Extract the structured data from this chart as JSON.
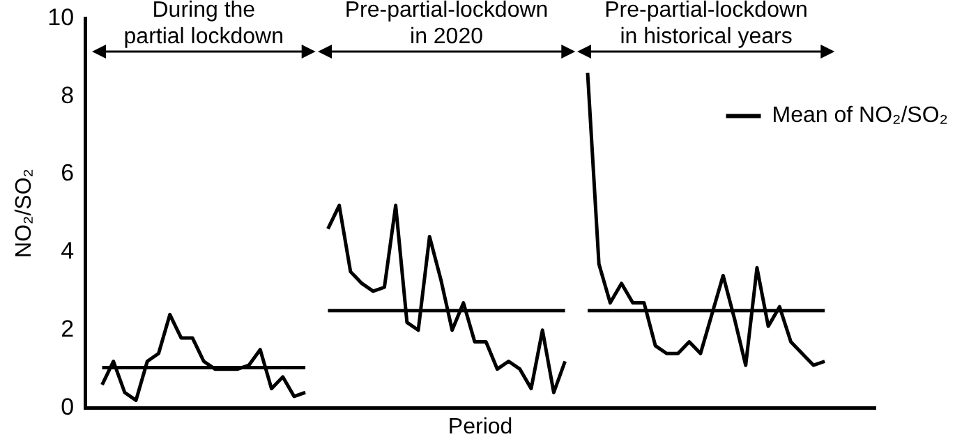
{
  "chart_data": {
    "type": "line",
    "xlabel": "Period",
    "ylabel": "NO₂/SO₂",
    "categories": [
      null,
      null,
      null,
      null,
      null,
      null,
      null,
      null,
      null,
      null,
      null,
      null,
      null,
      null,
      null,
      null,
      null,
      null,
      null,
      null,
      null,
      null,
      null,
      null,
      null,
      null,
      null,
      null,
      null,
      null,
      null,
      null,
      null,
      null,
      null,
      null,
      null,
      null,
      null,
      null,
      null,
      null,
      null,
      null,
      null,
      null,
      null,
      null,
      null,
      null,
      null,
      null,
      null,
      null,
      null,
      null,
      null,
      null,
      null,
      null,
      null,
      null,
      null,
      null,
      null,
      null,
      null,
      null,
      null,
      null
    ],
    "series": [
      {
        "color": "#000000",
        "values": [
          null,
          0.6,
          1.2,
          0.4,
          0.2,
          1.2,
          1.4,
          2.4,
          1.8,
          1.8,
          1.2,
          1.0,
          1.0,
          1.0,
          1.1,
          1.5,
          0.5,
          0.8,
          0.3,
          0.4,
          null,
          null,
          null,
          null,
          null,
          null,
          null,
          null,
          null,
          null,
          null,
          null,
          null,
          null,
          null,
          null,
          null,
          null,
          null,
          null,
          null,
          null,
          null,
          null,
          null,
          null,
          null,
          null,
          null,
          null,
          null,
          null,
          null,
          null,
          null,
          null,
          null,
          null,
          null,
          null,
          null,
          null,
          null,
          null,
          null,
          null,
          null,
          null,
          null,
          null
        ]
      },
      {
        "color": "#000000",
        "values": [
          null,
          null,
          null,
          null,
          null,
          null,
          null,
          null,
          null,
          null,
          null,
          null,
          null,
          null,
          null,
          null,
          null,
          null,
          null,
          null,
          null,
          4.6,
          5.2,
          3.5,
          3.2,
          3.0,
          3.1,
          5.2,
          2.2,
          2.0,
          4.4,
          3.3,
          2.0,
          2.7,
          1.7,
          1.7,
          1.0,
          1.2,
          1.0,
          0.5,
          2.0,
          0.4,
          1.2,
          null,
          null,
          null,
          null,
          null,
          null,
          null,
          null,
          null,
          null,
          null,
          null,
          null,
          null,
          null,
          null,
          null,
          null,
          null,
          null,
          null,
          null,
          null,
          null,
          null,
          null,
          null
        ]
      },
      {
        "color": "#000000",
        "values": [
          null,
          null,
          null,
          null,
          null,
          null,
          null,
          null,
          null,
          null,
          null,
          null,
          null,
          null,
          null,
          null,
          null,
          null,
          null,
          null,
          null,
          null,
          null,
          null,
          null,
          null,
          null,
          null,
          null,
          null,
          null,
          null,
          null,
          null,
          null,
          null,
          null,
          null,
          null,
          null,
          null,
          null,
          null,
          null,
          8.6,
          3.7,
          2.7,
          3.2,
          2.7,
          2.7,
          1.6,
          1.4,
          1.4,
          1.7,
          1.4,
          2.4,
          3.4,
          2.3,
          1.1,
          3.6,
          2.1,
          2.6,
          1.7,
          1.4,
          1.1,
          1.2,
          null,
          null,
          null,
          null
        ]
      },
      {
        "name": "Mean of NO₂/SO₂",
        "color": "#000000",
        "values": [
          null,
          1.04,
          1.04,
          1.04,
          1.04,
          1.04,
          1.04,
          1.04,
          1.04,
          1.04,
          1.04,
          1.04,
          1.04,
          1.04,
          1.04,
          1.04,
          1.04,
          1.04,
          1.04,
          1.04,
          null,
          null,
          null,
          null,
          null,
          null,
          null,
          null,
          null,
          null,
          null,
          null,
          null,
          null,
          null,
          null,
          null,
          null,
          null,
          null,
          null,
          null,
          null,
          null,
          null,
          null,
          null,
          null,
          null,
          null,
          null,
          null,
          null,
          null,
          null,
          null,
          null,
          null,
          null,
          null,
          null,
          null,
          null,
          null,
          null,
          null,
          null,
          null,
          null,
          null
        ]
      },
      {
        "color": "#000000",
        "values": [
          null,
          null,
          null,
          null,
          null,
          null,
          null,
          null,
          null,
          null,
          null,
          null,
          null,
          null,
          null,
          null,
          null,
          null,
          null,
          null,
          null,
          2.5,
          2.5,
          2.5,
          2.5,
          2.5,
          2.5,
          2.5,
          2.5,
          2.5,
          2.5,
          2.5,
          2.5,
          2.5,
          2.5,
          2.5,
          2.5,
          2.5,
          2.5,
          2.5,
          2.5,
          2.5,
          2.5,
          null,
          null,
          null,
          null,
          null,
          null,
          null,
          null,
          null,
          null,
          null,
          null,
          null,
          null,
          null,
          null,
          null,
          null,
          null,
          null,
          null,
          null,
          null,
          null,
          null,
          null,
          null
        ]
      },
      {
        "color": "#000000",
        "values": [
          null,
          null,
          null,
          null,
          null,
          null,
          null,
          null,
          null,
          null,
          null,
          null,
          null,
          null,
          null,
          null,
          null,
          null,
          null,
          null,
          null,
          null,
          null,
          null,
          null,
          null,
          null,
          null,
          null,
          null,
          null,
          null,
          null,
          null,
          null,
          null,
          null,
          null,
          null,
          null,
          null,
          null,
          null,
          null,
          2.5,
          2.5,
          2.5,
          2.5,
          2.5,
          2.5,
          2.5,
          2.5,
          2.5,
          2.5,
          2.5,
          2.5,
          2.5,
          2.5,
          2.5,
          2.5,
          2.5,
          2.5,
          2.5,
          2.5,
          2.5,
          2.5,
          null,
          null,
          null,
          null
        ]
      }
    ],
    "ylim": [
      0,
      10
    ],
    "yticks": [
      0,
      2,
      4,
      6,
      8,
      10
    ],
    "tick_labels": "y",
    "legend": "top right",
    "annotations": [
      "During the partial lockdown",
      "Pre-partial-lockdown in 2020",
      "Pre-partial-lockdown in historical years"
    ]
  }
}
